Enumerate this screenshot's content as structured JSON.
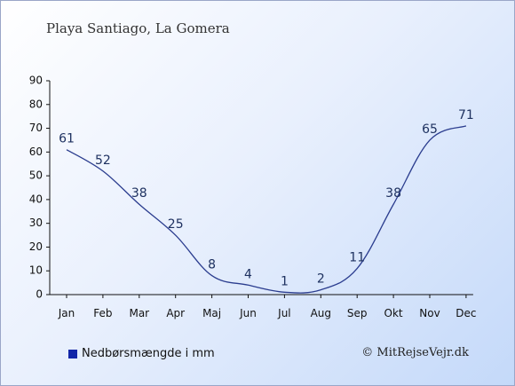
{
  "chart_data": {
    "type": "line",
    "title": "Playa Santiago, La Gomera",
    "categories": [
      "Jan",
      "Feb",
      "Mar",
      "Apr",
      "Maj",
      "Jun",
      "Jul",
      "Aug",
      "Sep",
      "Okt",
      "Nov",
      "Dec"
    ],
    "series": [
      {
        "name": "Nedbørsmængde i mm",
        "values": [
          61,
          52,
          38,
          25,
          8,
          4,
          1,
          2,
          11,
          38,
          65,
          71
        ]
      }
    ],
    "yticks": [
      0,
      10,
      20,
      30,
      40,
      50,
      60,
      70,
      80,
      90
    ],
    "ylim": [
      0,
      90
    ],
    "xlabel": "",
    "ylabel": "",
    "grid": false,
    "legend_position": "bottom-left",
    "line_color": "#2b3d8f",
    "legend_color": "#1226a8"
  },
  "legend": {
    "label": "Nedbørsmængde i mm"
  },
  "credit": "© MitRejseVejr.dk"
}
